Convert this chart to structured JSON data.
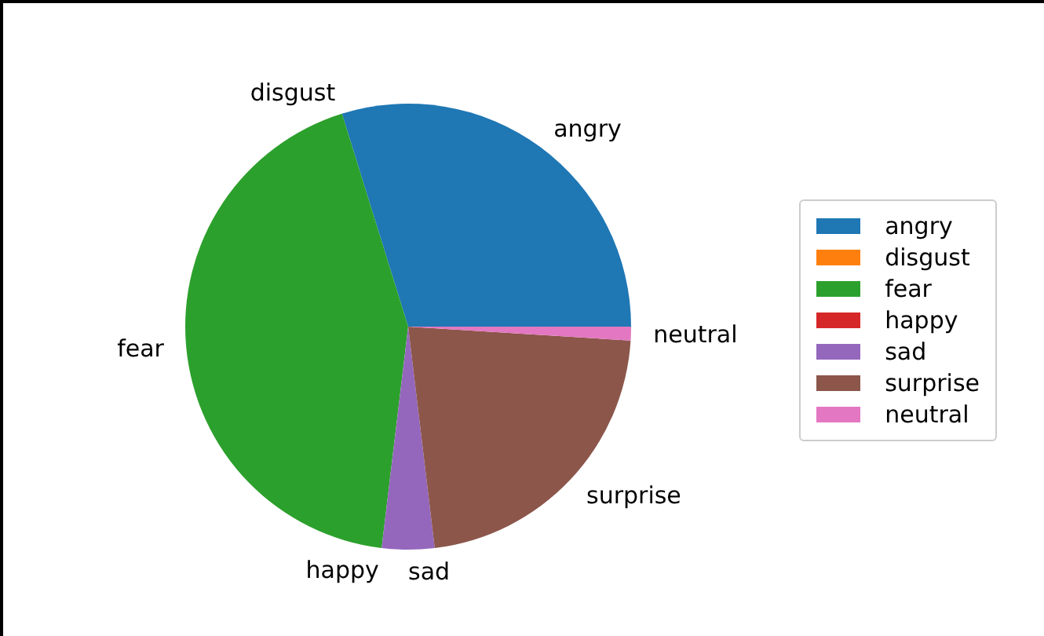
{
  "chart_data": {
    "type": "pie",
    "categories": [
      "angry",
      "disgust",
      "fear",
      "happy",
      "sad",
      "surprise",
      "neutral"
    ],
    "values": [
      29.8,
      0,
      43.3,
      0,
      3.8,
      22.1,
      1.0
    ],
    "colors": [
      "#1f77b4",
      "#ff7f0e",
      "#2ca02c",
      "#d62728",
      "#9467bd",
      "#8c564b",
      "#e377c2"
    ],
    "legend": "right"
  }
}
